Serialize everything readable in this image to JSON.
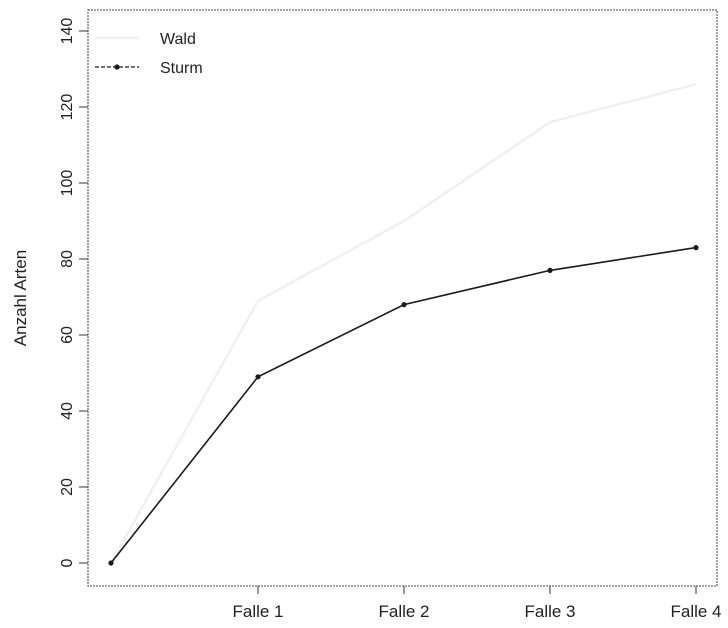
{
  "chart_data": {
    "type": "line",
    "title": "",
    "xlabel": "",
    "ylabel": "Anzahl Arten",
    "categories": [
      "",
      "Falle 1",
      "Falle 2",
      "Falle 3",
      "Falle 4"
    ],
    "x": [
      0,
      1,
      2,
      3,
      4
    ],
    "ylim": [
      -6,
      146
    ],
    "yticks": [
      0,
      20,
      40,
      60,
      80,
      100,
      120,
      140
    ],
    "grid": false,
    "legend": "top-left",
    "series": [
      {
        "name": "Wald",
        "values": [
          0,
          69,
          90,
          116,
          126
        ],
        "color": "#f0f0f0",
        "markers": false
      },
      {
        "name": "Sturm",
        "values": [
          0,
          49,
          68,
          77,
          83
        ],
        "color": "#1a1a1a",
        "markers": true
      }
    ]
  }
}
